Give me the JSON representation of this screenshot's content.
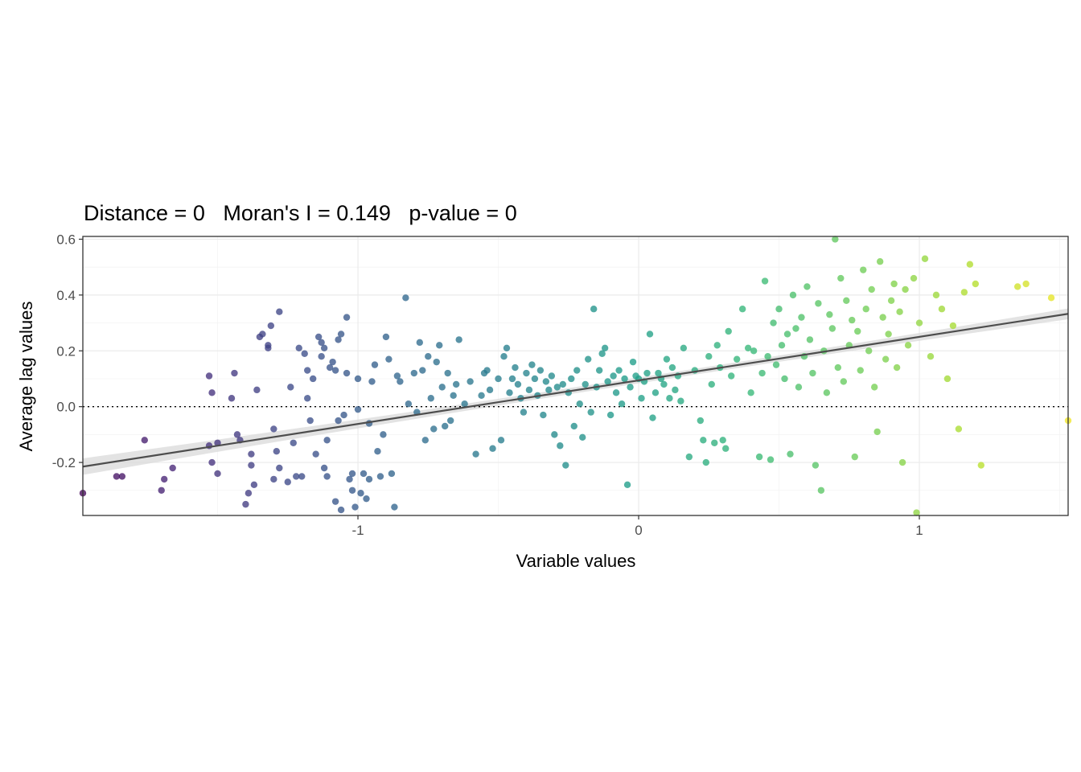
{
  "chart_data": {
    "type": "scatter",
    "title": "Distance = 0   Moran's I = 0.149   p-value = 0",
    "xlabel": "Variable values",
    "ylabel": "Average lag values",
    "xlim": [
      -1.98,
      1.53
    ],
    "ylim": [
      -0.39,
      0.61
    ],
    "x_ticks": [
      -1,
      0,
      1
    ],
    "x_tick_labels": [
      "-1",
      "0",
      "1"
    ],
    "y_ticks": [
      -0.2,
      0.0,
      0.2,
      0.4,
      0.6
    ],
    "y_tick_labels": [
      "-0.2",
      "0.0",
      "0.2",
      "0.4",
      "0.6"
    ],
    "grid": true,
    "reference_line": {
      "y": 0,
      "style": "dotted"
    },
    "trend_line": {
      "type": "linear fit with confidence band",
      "intercept": 0.094,
      "slope": 0.156,
      "ci_halfwidth": 0.03
    },
    "point_color_scale": "viridis by x value",
    "colors": {
      "line": "#4d4d4d",
      "band": "#d9d9d9",
      "grid": "#ebebeb",
      "panel_border": "#333333"
    },
    "points": [
      [
        -1.98,
        -0.31
      ],
      [
        -1.86,
        -0.25
      ],
      [
        -1.84,
        -0.25
      ],
      [
        -1.76,
        -0.12
      ],
      [
        -1.69,
        -0.26
      ],
      [
        -1.7,
        -0.3
      ],
      [
        -1.66,
        -0.22
      ],
      [
        -1.53,
        0.11
      ],
      [
        -1.52,
        0.05
      ],
      [
        -1.53,
        -0.14
      ],
      [
        -1.52,
        -0.2
      ],
      [
        -1.5,
        -0.13
      ],
      [
        -1.5,
        -0.24
      ],
      [
        -1.45,
        0.03
      ],
      [
        -1.44,
        0.12
      ],
      [
        -1.43,
        -0.1
      ],
      [
        -1.42,
        -0.12
      ],
      [
        -1.4,
        -0.35
      ],
      [
        -1.39,
        -0.31
      ],
      [
        -1.38,
        -0.17
      ],
      [
        -1.38,
        -0.21
      ],
      [
        -1.37,
        -0.28
      ],
      [
        -1.36,
        0.06
      ],
      [
        -1.35,
        0.25
      ],
      [
        -1.34,
        0.26
      ],
      [
        -1.32,
        0.21
      ],
      [
        -1.32,
        0.22
      ],
      [
        -1.31,
        0.29
      ],
      [
        -1.3,
        -0.08
      ],
      [
        -1.3,
        -0.26
      ],
      [
        -1.29,
        -0.16
      ],
      [
        -1.28,
        0.34
      ],
      [
        -1.28,
        -0.22
      ],
      [
        -1.25,
        -0.27
      ],
      [
        -1.24,
        0.07
      ],
      [
        -1.23,
        -0.13
      ],
      [
        -1.22,
        -0.25
      ],
      [
        -1.21,
        0.21
      ],
      [
        -1.2,
        -0.25
      ],
      [
        -1.19,
        0.19
      ],
      [
        -1.18,
        0.13
      ],
      [
        -1.18,
        0.03
      ],
      [
        -1.17,
        -0.05
      ],
      [
        -1.16,
        0.1
      ],
      [
        -1.15,
        -0.17
      ],
      [
        -1.14,
        0.25
      ],
      [
        -1.13,
        0.18
      ],
      [
        -1.13,
        0.23
      ],
      [
        -1.12,
        0.21
      ],
      [
        -1.12,
        -0.22
      ],
      [
        -1.11,
        -0.25
      ],
      [
        -1.11,
        -0.12
      ],
      [
        -1.1,
        0.14
      ],
      [
        -1.09,
        0.16
      ],
      [
        -1.08,
        0.13
      ],
      [
        -1.08,
        -0.34
      ],
      [
        -1.07,
        0.24
      ],
      [
        -1.07,
        -0.05
      ],
      [
        -1.06,
        0.26
      ],
      [
        -1.06,
        -0.37
      ],
      [
        -1.05,
        -0.03
      ],
      [
        -1.04,
        0.32
      ],
      [
        -1.04,
        0.12
      ],
      [
        -1.03,
        -0.26
      ],
      [
        -1.02,
        -0.24
      ],
      [
        -1.02,
        -0.3
      ],
      [
        -1.01,
        -0.36
      ],
      [
        -1.0,
        0.1
      ],
      [
        -1.0,
        -0.01
      ],
      [
        -0.99,
        -0.31
      ],
      [
        -0.98,
        -0.24
      ],
      [
        -0.97,
        -0.33
      ],
      [
        -0.96,
        -0.26
      ],
      [
        -0.96,
        -0.06
      ],
      [
        -0.95,
        0.09
      ],
      [
        -0.94,
        0.15
      ],
      [
        -0.93,
        -0.16
      ],
      [
        -0.92,
        -0.25
      ],
      [
        -0.91,
        -0.1
      ],
      [
        -0.9,
        0.25
      ],
      [
        -0.89,
        0.17
      ],
      [
        -0.88,
        -0.24
      ],
      [
        -0.87,
        -0.36
      ],
      [
        -0.86,
        0.11
      ],
      [
        -0.85,
        0.09
      ],
      [
        -0.83,
        0.39
      ],
      [
        -0.82,
        0.01
      ],
      [
        -0.8,
        0.12
      ],
      [
        -0.79,
        -0.02
      ],
      [
        -0.78,
        0.23
      ],
      [
        -0.77,
        0.13
      ],
      [
        -0.76,
        -0.12
      ],
      [
        -0.75,
        0.18
      ],
      [
        -0.74,
        0.03
      ],
      [
        -0.73,
        -0.08
      ],
      [
        -0.72,
        0.16
      ],
      [
        -0.71,
        0.22
      ],
      [
        -0.7,
        0.07
      ],
      [
        -0.69,
        -0.07
      ],
      [
        -0.68,
        0.12
      ],
      [
        -0.67,
        -0.05
      ],
      [
        -0.66,
        0.04
      ],
      [
        -0.65,
        0.08
      ],
      [
        -0.64,
        0.24
      ],
      [
        -0.62,
        0.01
      ],
      [
        -0.6,
        0.09
      ],
      [
        -0.58,
        -0.17
      ],
      [
        -0.56,
        0.04
      ],
      [
        -0.55,
        0.12
      ],
      [
        -0.54,
        0.13
      ],
      [
        -0.53,
        0.06
      ],
      [
        -0.52,
        -0.15
      ],
      [
        -0.5,
        0.1
      ],
      [
        -0.49,
        -0.12
      ],
      [
        -0.48,
        0.18
      ],
      [
        -0.47,
        0.21
      ],
      [
        -0.46,
        0.05
      ],
      [
        -0.45,
        0.1
      ],
      [
        -0.44,
        0.14
      ],
      [
        -0.43,
        0.08
      ],
      [
        -0.42,
        0.03
      ],
      [
        -0.41,
        -0.02
      ],
      [
        -0.4,
        0.12
      ],
      [
        -0.39,
        0.06
      ],
      [
        -0.38,
        0.15
      ],
      [
        -0.37,
        0.1
      ],
      [
        -0.36,
        0.04
      ],
      [
        -0.35,
        0.13
      ],
      [
        -0.34,
        -0.03
      ],
      [
        -0.33,
        0.09
      ],
      [
        -0.32,
        0.06
      ],
      [
        -0.31,
        0.11
      ],
      [
        -0.3,
        -0.1
      ],
      [
        -0.29,
        0.07
      ],
      [
        -0.28,
        -0.14
      ],
      [
        -0.27,
        0.08
      ],
      [
        -0.26,
        -0.21
      ],
      [
        -0.25,
        0.05
      ],
      [
        -0.24,
        0.1
      ],
      [
        -0.23,
        -0.07
      ],
      [
        -0.22,
        0.13
      ],
      [
        -0.21,
        0.01
      ],
      [
        -0.2,
        -0.11
      ],
      [
        -0.19,
        0.08
      ],
      [
        -0.18,
        0.17
      ],
      [
        -0.17,
        -0.02
      ],
      [
        -0.16,
        0.35
      ],
      [
        -0.15,
        0.07
      ],
      [
        -0.14,
        0.13
      ],
      [
        -0.13,
        0.19
      ],
      [
        -0.12,
        0.21
      ],
      [
        -0.11,
        0.09
      ],
      [
        -0.1,
        -0.03
      ],
      [
        -0.09,
        0.11
      ],
      [
        -0.08,
        0.05
      ],
      [
        -0.07,
        0.13
      ],
      [
        -0.06,
        0.01
      ],
      [
        -0.05,
        0.1
      ],
      [
        -0.04,
        -0.28
      ],
      [
        -0.03,
        0.07
      ],
      [
        -0.02,
        0.16
      ],
      [
        -0.01,
        0.11
      ],
      [
        0.0,
        0.1
      ],
      [
        0.01,
        0.03
      ],
      [
        0.02,
        0.09
      ],
      [
        0.03,
        0.12
      ],
      [
        0.04,
        0.26
      ],
      [
        0.05,
        -0.04
      ],
      [
        0.06,
        0.05
      ],
      [
        0.07,
        0.12
      ],
      [
        0.08,
        0.1
      ],
      [
        0.09,
        0.08
      ],
      [
        0.1,
        0.17
      ],
      [
        0.11,
        0.03
      ],
      [
        0.12,
        0.14
      ],
      [
        0.13,
        0.06
      ],
      [
        0.14,
        0.11
      ],
      [
        0.15,
        0.02
      ],
      [
        0.16,
        0.21
      ],
      [
        0.18,
        -0.18
      ],
      [
        0.2,
        0.13
      ],
      [
        0.22,
        -0.05
      ],
      [
        0.23,
        -0.12
      ],
      [
        0.24,
        -0.2
      ],
      [
        0.25,
        0.18
      ],
      [
        0.26,
        0.08
      ],
      [
        0.27,
        -0.13
      ],
      [
        0.28,
        0.22
      ],
      [
        0.29,
        0.14
      ],
      [
        0.3,
        -0.12
      ],
      [
        0.31,
        -0.15
      ],
      [
        0.32,
        0.27
      ],
      [
        0.33,
        0.11
      ],
      [
        0.35,
        0.17
      ],
      [
        0.37,
        0.35
      ],
      [
        0.39,
        0.21
      ],
      [
        0.4,
        0.05
      ],
      [
        0.41,
        0.2
      ],
      [
        0.43,
        -0.18
      ],
      [
        0.44,
        0.12
      ],
      [
        0.45,
        0.45
      ],
      [
        0.46,
        0.18
      ],
      [
        0.47,
        -0.19
      ],
      [
        0.48,
        0.3
      ],
      [
        0.49,
        0.15
      ],
      [
        0.5,
        0.35
      ],
      [
        0.51,
        0.22
      ],
      [
        0.52,
        0.1
      ],
      [
        0.53,
        0.26
      ],
      [
        0.54,
        -0.17
      ],
      [
        0.55,
        0.4
      ],
      [
        0.56,
        0.28
      ],
      [
        0.57,
        0.07
      ],
      [
        0.58,
        0.32
      ],
      [
        0.59,
        0.18
      ],
      [
        0.6,
        0.43
      ],
      [
        0.61,
        0.24
      ],
      [
        0.62,
        0.12
      ],
      [
        0.63,
        -0.21
      ],
      [
        0.64,
        0.37
      ],
      [
        0.65,
        -0.3
      ],
      [
        0.66,
        0.2
      ],
      [
        0.67,
        0.05
      ],
      [
        0.68,
        0.33
      ],
      [
        0.69,
        0.28
      ],
      [
        0.7,
        0.6
      ],
      [
        0.71,
        0.14
      ],
      [
        0.72,
        0.46
      ],
      [
        0.73,
        0.09
      ],
      [
        0.74,
        0.38
      ],
      [
        0.75,
        0.22
      ],
      [
        0.76,
        0.31
      ],
      [
        0.77,
        -0.18
      ],
      [
        0.78,
        0.27
      ],
      [
        0.79,
        0.13
      ],
      [
        0.8,
        0.49
      ],
      [
        0.81,
        0.35
      ],
      [
        0.82,
        0.2
      ],
      [
        0.83,
        0.42
      ],
      [
        0.84,
        0.07
      ],
      [
        0.85,
        -0.09
      ],
      [
        0.86,
        0.52
      ],
      [
        0.87,
        0.32
      ],
      [
        0.88,
        0.17
      ],
      [
        0.89,
        0.26
      ],
      [
        0.9,
        0.38
      ],
      [
        0.91,
        0.44
      ],
      [
        0.92,
        0.14
      ],
      [
        0.93,
        0.34
      ],
      [
        0.94,
        -0.2
      ],
      [
        0.95,
        0.42
      ],
      [
        0.96,
        0.22
      ],
      [
        0.98,
        0.46
      ],
      [
        0.99,
        -0.38
      ],
      [
        1.0,
        0.3
      ],
      [
        1.02,
        0.53
      ],
      [
        1.04,
        0.18
      ],
      [
        1.06,
        0.4
      ],
      [
        1.08,
        0.35
      ],
      [
        1.1,
        0.1
      ],
      [
        1.12,
        0.29
      ],
      [
        1.14,
        -0.08
      ],
      [
        1.16,
        0.41
      ],
      [
        1.18,
        0.51
      ],
      [
        1.2,
        0.44
      ],
      [
        1.22,
        -0.21
      ],
      [
        1.35,
        0.43
      ],
      [
        1.38,
        0.44
      ],
      [
        1.47,
        0.39
      ],
      [
        1.53,
        -0.05
      ]
    ]
  }
}
